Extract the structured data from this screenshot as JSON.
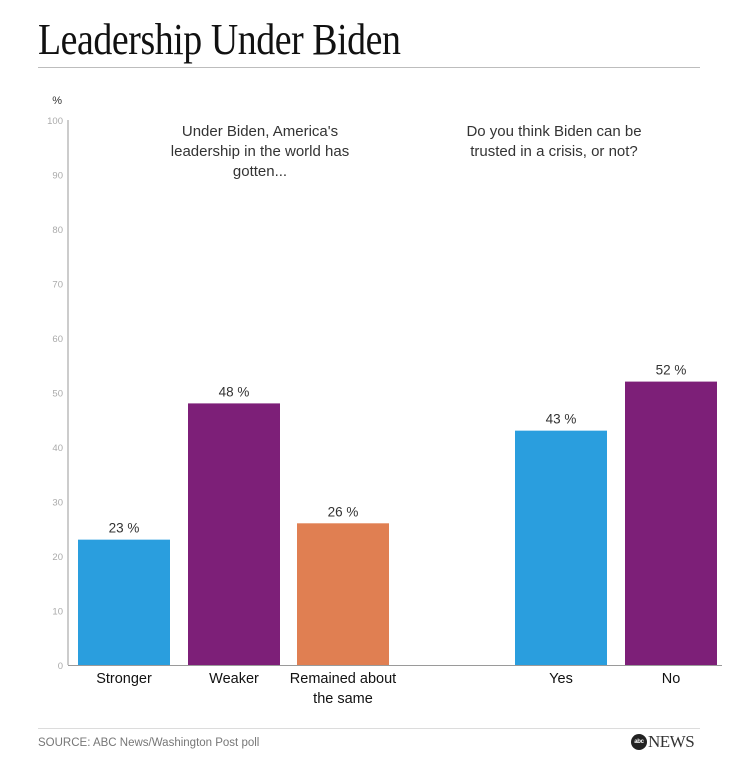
{
  "chart_data": {
    "type": "bar",
    "title": "Leadership Under Biden",
    "ylabel": "%",
    "ylim": [
      0,
      100
    ],
    "yticks": [
      0,
      10,
      20,
      30,
      40,
      50,
      60,
      70,
      80,
      90,
      100
    ],
    "grid": false,
    "value_suffix": " %",
    "groups": [
      {
        "question": [
          "Under Biden, America's",
          "leadership in the world has",
          "gotten..."
        ],
        "categories": [
          [
            "Stronger"
          ],
          [
            "Weaker"
          ],
          [
            "Remained about",
            "the same"
          ]
        ],
        "values": [
          23,
          48,
          26
        ],
        "colors": [
          "#2a9ede",
          "#7d1f78",
          "#e07f52"
        ]
      },
      {
        "question": [
          "Do you think Biden can be",
          "trusted in a crisis, or not?"
        ],
        "categories": [
          [
            "Yes"
          ],
          [
            "No"
          ]
        ],
        "values": [
          43,
          52
        ],
        "colors": [
          "#2a9ede",
          "#7d1f78"
        ]
      }
    ]
  },
  "footer": {
    "source": "SOURCE: ABC News/Washington Post poll",
    "logo_mark": "abc",
    "logo_text": "NEWS"
  }
}
